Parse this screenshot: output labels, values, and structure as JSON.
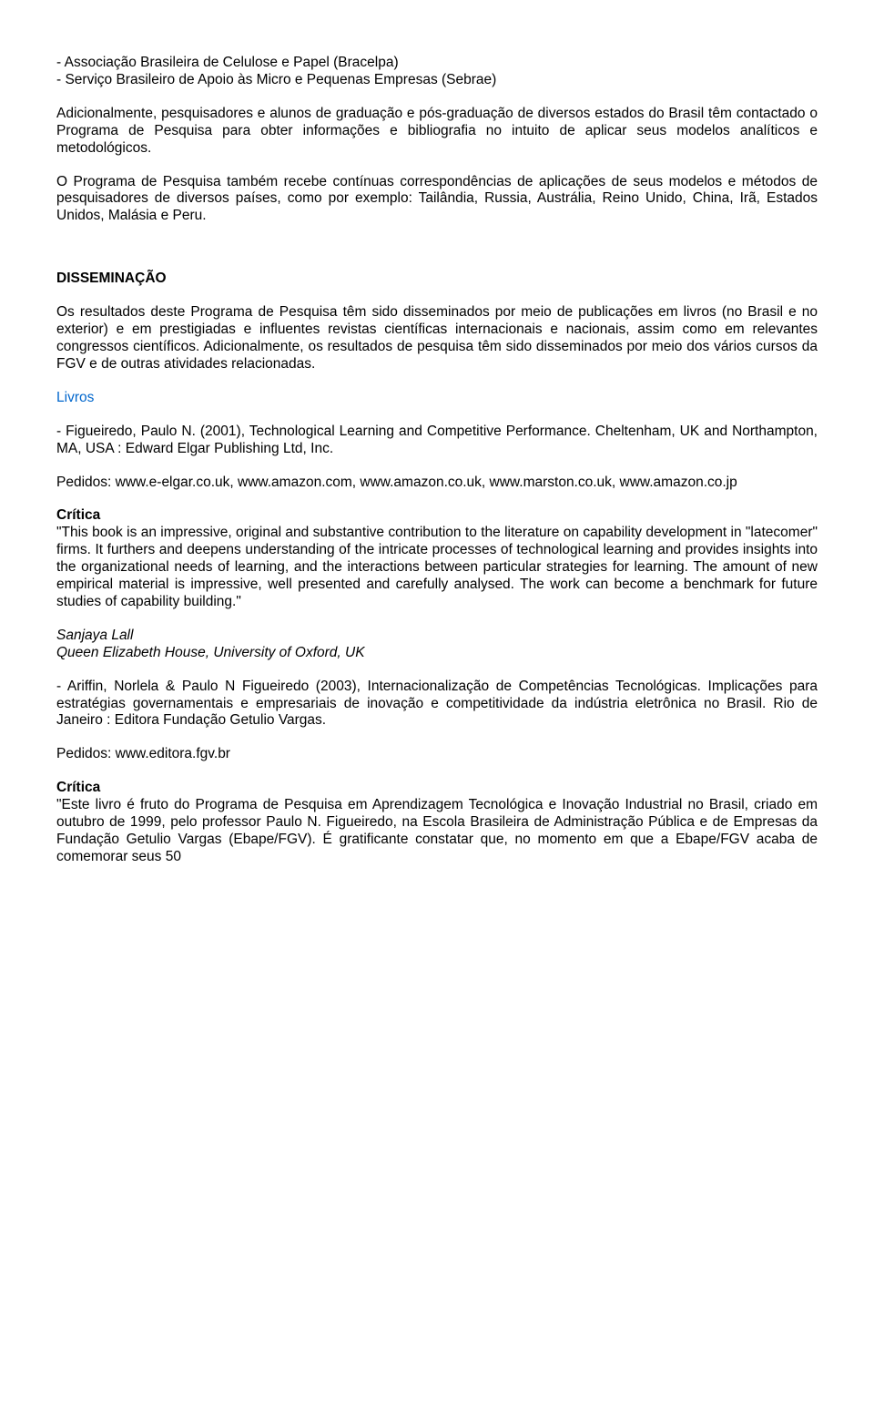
{
  "bullet1": "- Associação Brasileira de Celulose e Papel (Bracelpa)",
  "bullet2": "- Serviço Brasileiro de Apoio às Micro e Pequenas Empresas (Sebrae)",
  "p1": "Adicionalmente, pesquisadores e alunos de graduação e pós-graduação de diversos estados do Brasil têm contactado o Programa de Pesquisa para obter informações e bibliografia no intuito de aplicar seus modelos analíticos e metodológicos.",
  "p2": "O Programa de Pesquisa também recebe contínuas correspondências de aplicações de seus modelos e métodos de pesquisadores de diversos países, como por exemplo: Tailândia, Russia, Austrália, Reino Unido, China, Irã, Estados Unidos, Malásia e Peru.",
  "section_title": "DISSEMINAÇÃO",
  "p3": "Os resultados deste Programa de Pesquisa têm sido disseminados por meio de publicações em livros (no Brasil e no exterior) e em prestigiadas e influentes revistas científicas internacionais e nacionais, assim como em relevantes congressos científicos. Adicionalmente, os resultados de pesquisa têm sido disseminados por meio dos vários cursos da FGV e de outras atividades relacionadas.",
  "livros_label": "Livros",
  "book1": "- Figueiredo, Paulo N. (2001), Technological Learning and Competitive Performance. Cheltenham, UK and Northampton, MA, USA : Edward Elgar Publishing Ltd, Inc.",
  "pedidos1": "Pedidos: www.e-elgar.co.uk, www.amazon.com, www.amazon.co.uk, www.marston.co.uk, www.amazon.co.jp",
  "critica_label": "Crítica",
  "critica1": "\"This book is an impressive, original and substantive contribution to the literature on capability development in \"latecomer\" firms. It furthers and deepens understanding of the intricate processes of technological learning and provides insights into the organizational needs of learning, and the interactions between particular strategies for learning. The amount of new empirical material is impressive, well presented and carefully analysed. The work can become a benchmark for future studies of capability building.\"",
  "author1": "Sanjaya Lall",
  "affil1": "Queen Elizabeth House, University of Oxford, UK",
  "book2": "- Ariffin, Norlela & Paulo N Figueiredo (2003), Internacionalização de Competências Tecnológicas. Implicações para estratégias governamentais e empresariais de inovação e competitividade da indústria eletrônica no Brasil. Rio de Janeiro : Editora Fundação Getulio Vargas.",
  "pedidos2": "Pedidos: www.editora.fgv.br",
  "critica2": "\"Este livro é fruto do Programa de Pesquisa em Aprendizagem Tecnológica e Inovação Industrial no Brasil, criado em outubro de 1999, pelo professor Paulo N. Figueiredo, na Escola Brasileira de Administração Pública e de Empresas da Fundação Getulio Vargas (Ebape/FGV). É gratificante constatar que, no momento em que a Ebape/FGV acaba de comemorar seus 50"
}
